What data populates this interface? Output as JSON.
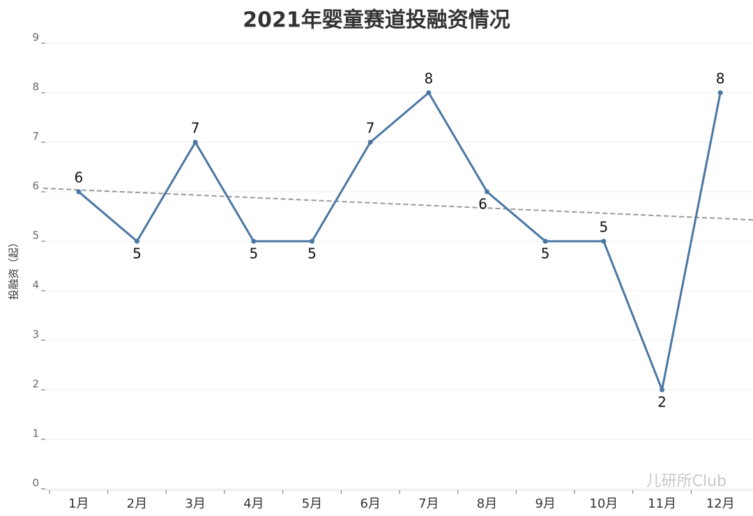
{
  "chart_data": {
    "type": "line",
    "title": "2021年婴童赛道投融资情况",
    "y_label": "投融资（起）",
    "categories": [
      "1月",
      "2月",
      "3月",
      "4月",
      "5月",
      "6月",
      "7月",
      "8月",
      "9月",
      "10月",
      "11月",
      "12月"
    ],
    "values": [
      6,
      5,
      7,
      5,
      5,
      7,
      8,
      6,
      5,
      5,
      2,
      8
    ],
    "color": "#4a76a2",
    "ylim": [
      0,
      9
    ],
    "yticks": [
      0,
      1,
      2,
      3,
      4,
      5,
      6,
      7,
      8,
      9
    ],
    "grid": true,
    "trendline": true,
    "watermark": "儿研所Club"
  }
}
